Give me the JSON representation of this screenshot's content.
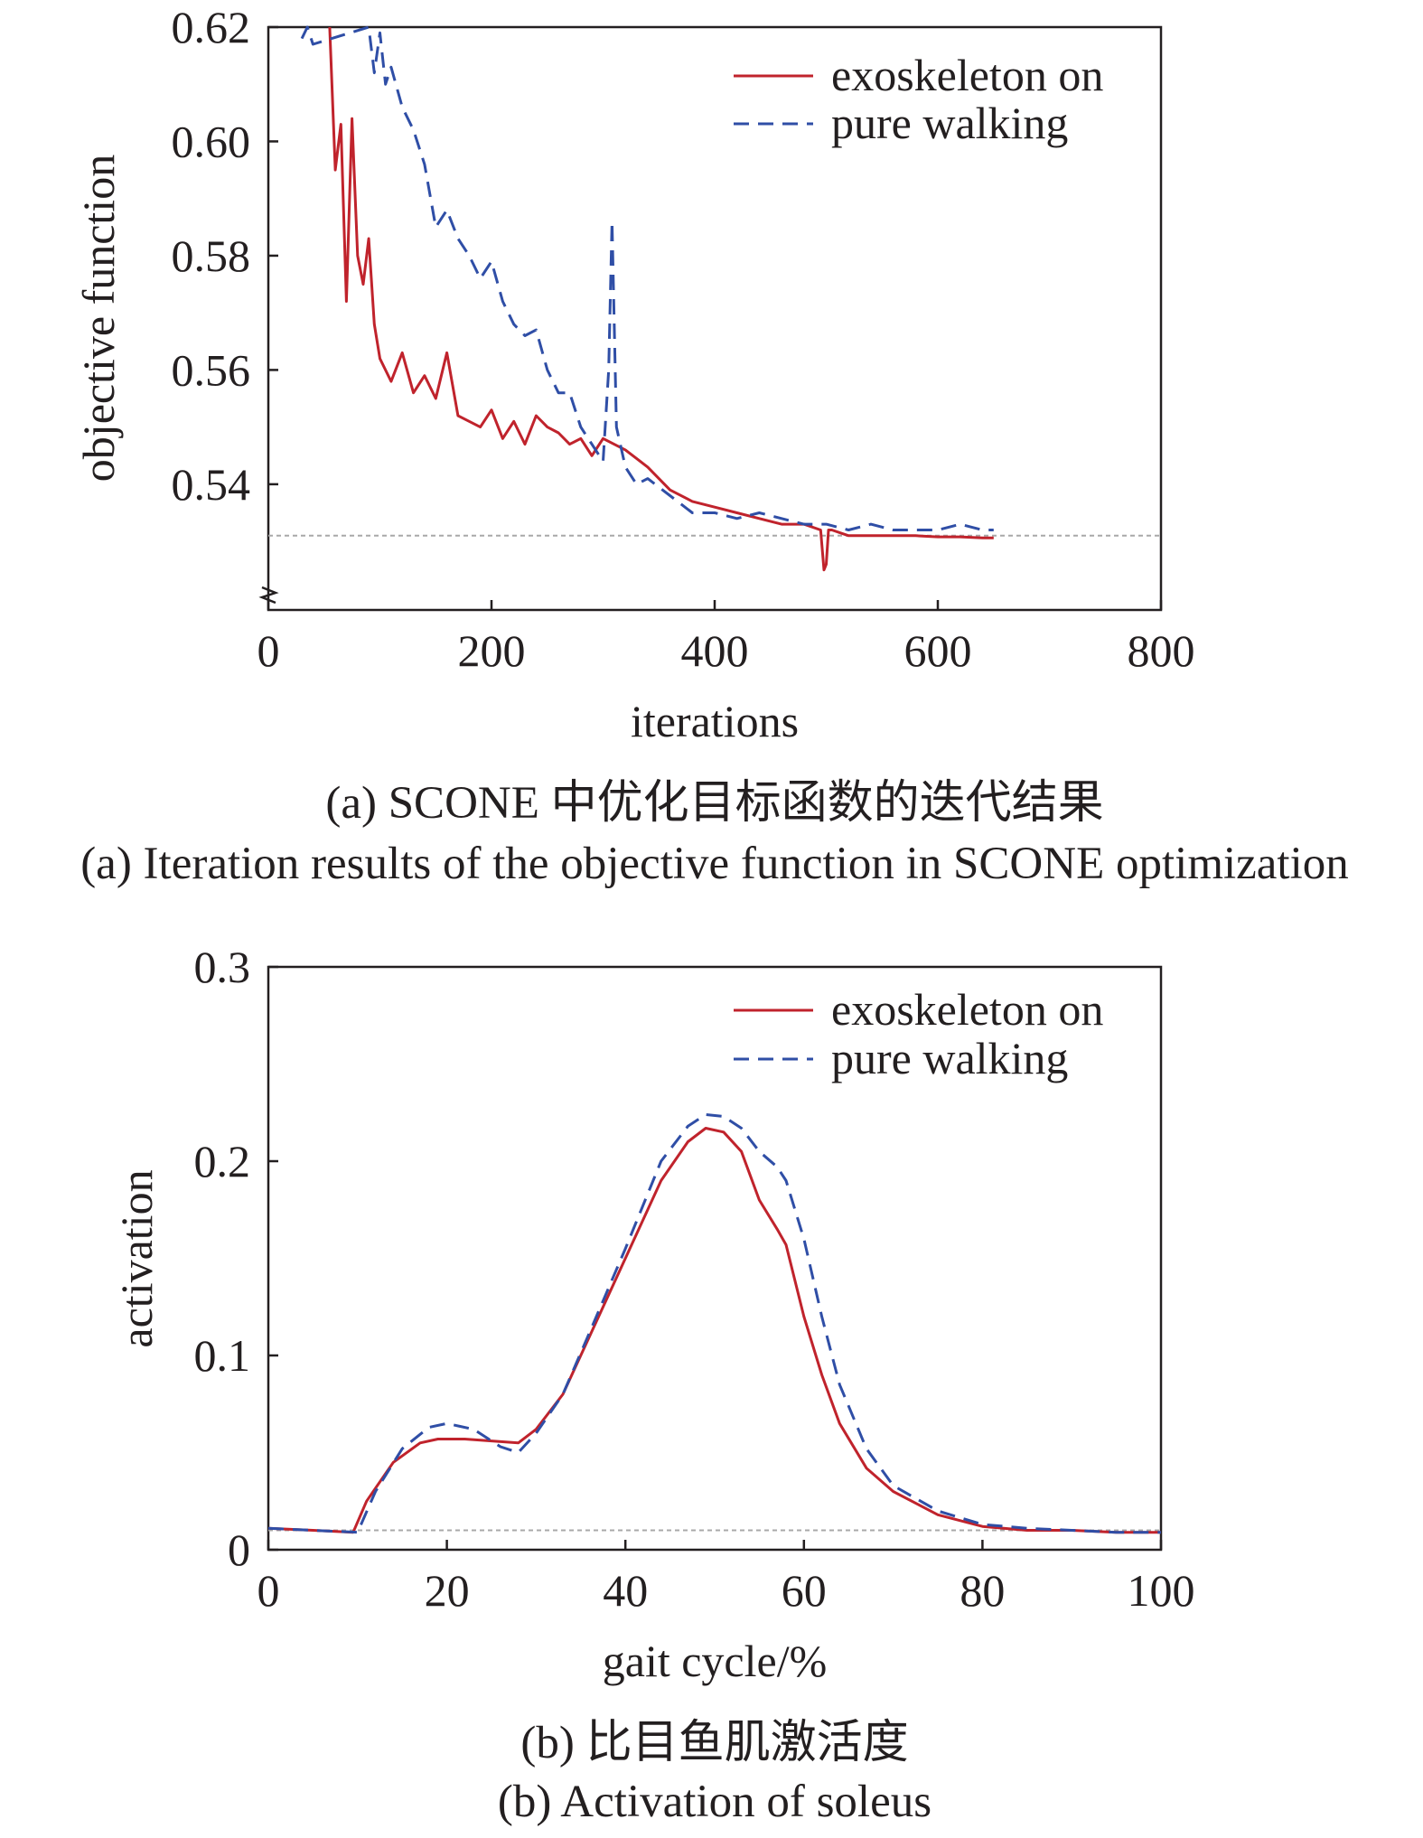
{
  "chart_data": [
    {
      "type": "line",
      "caption_cn": "(a) SCONE 中优化目标函数的迭代结果",
      "caption_en": "(a) Iteration results of the objective function in SCONE optimization",
      "xlabel": "iterations",
      "ylabel": "objective function",
      "xlim": [
        0,
        800
      ],
      "ylim": [
        0.518,
        0.62
      ],
      "y_axis_break": true,
      "xticks": [
        0,
        200,
        400,
        600,
        800
      ],
      "yticks": [
        0.54,
        0.56,
        0.58,
        0.6,
        0.62
      ],
      "ytick_labels": [
        "0.54",
        "0.56",
        "0.58",
        "0.60",
        "0.62"
      ],
      "reference_line_y": 0.531,
      "legend_position": "top-right",
      "grid": false,
      "series": [
        {
          "name": "exoskeleton on",
          "color": "#c0232c",
          "dash": "solid",
          "x": [
            55,
            60,
            65,
            70,
            75,
            80,
            85,
            90,
            95,
            100,
            110,
            120,
            130,
            140,
            150,
            160,
            170,
            180,
            190,
            200,
            210,
            220,
            230,
            240,
            250,
            260,
            270,
            280,
            290,
            300,
            320,
            340,
            360,
            380,
            400,
            420,
            440,
            460,
            480,
            495,
            498,
            500,
            502,
            505,
            520,
            540,
            560,
            580,
            600,
            620,
            640,
            650
          ],
          "y": [
            0.62,
            0.595,
            0.603,
            0.572,
            0.604,
            0.58,
            0.575,
            0.583,
            0.568,
            0.562,
            0.558,
            0.563,
            0.556,
            0.559,
            0.555,
            0.563,
            0.552,
            0.551,
            0.55,
            0.553,
            0.548,
            0.551,
            0.547,
            0.552,
            0.55,
            0.549,
            0.547,
            0.548,
            0.545,
            0.548,
            0.546,
            0.543,
            0.539,
            0.537,
            0.536,
            0.535,
            0.534,
            0.533,
            0.533,
            0.532,
            0.525,
            0.526,
            0.532,
            0.532,
            0.531,
            0.531,
            0.531,
            0.531,
            0.5308,
            0.5308,
            0.5306,
            0.5306
          ]
        },
        {
          "name": "pure walking",
          "color": "#2f4ea6",
          "dash": "dashed",
          "x": [
            30,
            35,
            40,
            90,
            95,
            100,
            105,
            110,
            120,
            130,
            140,
            150,
            160,
            170,
            180,
            190,
            200,
            210,
            220,
            230,
            240,
            250,
            260,
            270,
            280,
            290,
            300,
            305,
            308,
            312,
            320,
            330,
            340,
            360,
            380,
            400,
            420,
            440,
            460,
            480,
            500,
            520,
            540,
            560,
            580,
            600,
            620,
            640,
            650
          ],
          "y": [
            0.618,
            0.62,
            0.617,
            0.62,
            0.612,
            0.619,
            0.61,
            0.613,
            0.606,
            0.602,
            0.596,
            0.585,
            0.588,
            0.583,
            0.58,
            0.576,
            0.579,
            0.572,
            0.568,
            0.566,
            0.567,
            0.56,
            0.556,
            0.556,
            0.55,
            0.547,
            0.544,
            0.56,
            0.586,
            0.55,
            0.543,
            0.54,
            0.541,
            0.538,
            0.535,
            0.535,
            0.534,
            0.535,
            0.534,
            0.533,
            0.533,
            0.532,
            0.533,
            0.532,
            0.532,
            0.532,
            0.533,
            0.532,
            0.532
          ]
        }
      ]
    },
    {
      "type": "line",
      "caption_cn": "(b) 比目鱼肌激活度",
      "caption_en": "(b) Activation of soleus",
      "xlabel": "gait cycle/%",
      "ylabel": "activation",
      "xlim": [
        0,
        100
      ],
      "ylim": [
        0,
        0.3
      ],
      "xticks": [
        0,
        20,
        40,
        60,
        80,
        100
      ],
      "yticks": [
        0,
        0.1,
        0.2,
        0.3
      ],
      "ytick_labels": [
        "0",
        "0.1",
        "0.2",
        "0.3"
      ],
      "reference_line_y": 0.01,
      "legend_position": "top-right",
      "grid": false,
      "series": [
        {
          "name": "exoskeleton on",
          "color": "#c0232c",
          "dash": "solid",
          "x": [
            0,
            5,
            9.5,
            11,
            14,
            17,
            19,
            22,
            25,
            28,
            30,
            33,
            36,
            40,
            44,
            47,
            49,
            51,
            53,
            55,
            57,
            58,
            60,
            62,
            64,
            67,
            70,
            75,
            80,
            85,
            90,
            95,
            100
          ],
          "y": [
            0.011,
            0.01,
            0.009,
            0.025,
            0.045,
            0.055,
            0.057,
            0.057,
            0.056,
            0.055,
            0.062,
            0.08,
            0.11,
            0.15,
            0.19,
            0.21,
            0.217,
            0.215,
            0.205,
            0.18,
            0.165,
            0.157,
            0.12,
            0.09,
            0.065,
            0.042,
            0.03,
            0.018,
            0.012,
            0.01,
            0.01,
            0.009,
            0.009
          ]
        },
        {
          "name": "pure walking",
          "color": "#2f4ea6",
          "dash": "dashed",
          "x": [
            0,
            5,
            10,
            12,
            15,
            18,
            20,
            23,
            26,
            28,
            30,
            33,
            36,
            40,
            44,
            47,
            49,
            51,
            53,
            55,
            57,
            58,
            60,
            62,
            64,
            67,
            70,
            75,
            80,
            85,
            90,
            95,
            100
          ],
          "y": [
            0.011,
            0.01,
            0.009,
            0.03,
            0.052,
            0.063,
            0.065,
            0.062,
            0.053,
            0.05,
            0.06,
            0.08,
            0.112,
            0.155,
            0.2,
            0.218,
            0.224,
            0.223,
            0.217,
            0.205,
            0.197,
            0.19,
            0.16,
            0.12,
            0.085,
            0.052,
            0.033,
            0.02,
            0.013,
            0.011,
            0.01,
            0.009,
            0.009
          ]
        }
      ]
    }
  ]
}
